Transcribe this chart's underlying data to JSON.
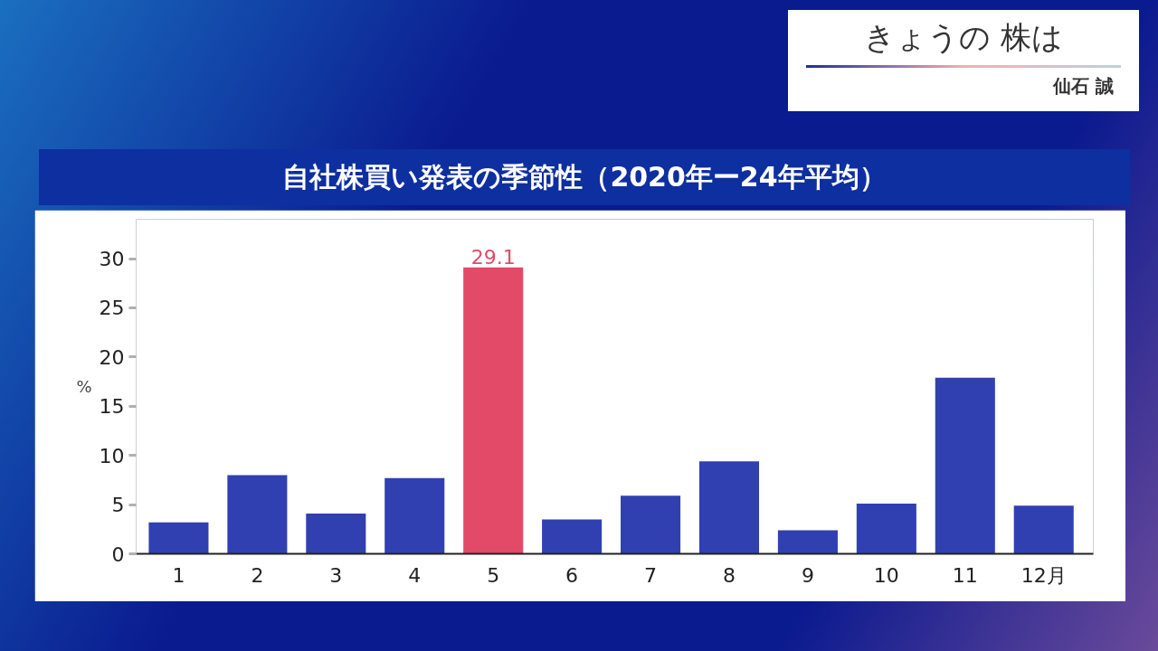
{
  "chart_data": {
    "type": "bar",
    "title": "自社株買い発表の季節性（2020年ー24年平均）",
    "ylabel": "%",
    "annotations": [
      "きょうの 株は",
      "仙石 誠"
    ],
    "categories": [
      "1",
      "2",
      "3",
      "4",
      "5",
      "6",
      "7",
      "8",
      "9",
      "10",
      "11",
      "12月"
    ],
    "values": [
      3.2,
      8.0,
      4.1,
      7.7,
      29.1,
      3.5,
      5.9,
      9.4,
      2.4,
      5.1,
      17.9,
      4.9
    ],
    "colors": [
      "#3140b0",
      "#3140b0",
      "#3140b0",
      "#3140b0",
      "#e24a68",
      "#3140b0",
      "#3140b0",
      "#3140b0",
      "#3140b0",
      "#3140b0",
      "#3140b0",
      "#3140b0"
    ],
    "value_labels": [
      null,
      null,
      null,
      null,
      "29.1",
      null,
      null,
      null,
      null,
      null,
      null,
      null
    ],
    "ylim": [
      0,
      34
    ],
    "yticks": [
      0,
      5,
      10,
      15,
      20,
      25,
      30
    ],
    "grid": false
  }
}
